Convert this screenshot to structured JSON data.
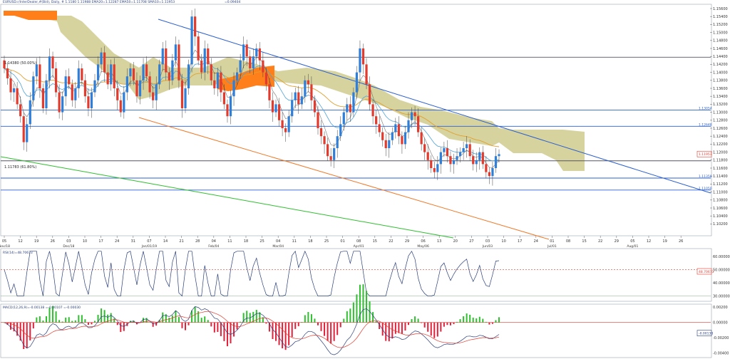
{
  "header": {
    "main_title": "EURUSD.r/InterDealer,#(Bid), Daily, # 1.1180 1.11988 EMA20=1.12287 EMA50=1.11708 SMA10=1.11953",
    "indicator_value": "=0.09404"
  },
  "main_panel": {
    "price_ticks": [
      "1.15600",
      "1.15400",
      "1.15200",
      "1.15000",
      "1.14800",
      "1.14600",
      "1.14400",
      "1.14200",
      "1.14000",
      "1.13800",
      "1.13600",
      "1.13400",
      "1.13200",
      "1.13000",
      "1.12800",
      "1.12600",
      "1.12400",
      "1.12200",
      "1.12000",
      "1.11800",
      "1.11600",
      "1.11400",
      "1.11200",
      "1.11000",
      "1.10800",
      "1.10600",
      "1.10400",
      "1.10200"
    ],
    "fib_50_label": "1.14380 (50.00%)",
    "fib_618_label": "1.11783 (61.80%)",
    "level_labels": [
      "1.13054",
      "1.12648",
      "1.11350",
      "1.11050"
    ],
    "current_price_tag": "1.11953",
    "colors": {
      "up_candle": "#2f7fd8",
      "down_candle": "#e23b2e",
      "cloud": "#c9c47f",
      "cloud_bear": "#ff7f1a",
      "ema_orange": "#e0a030",
      "sma_blue": "#4fa3d8",
      "trend_blue": "#2b5fd0",
      "trend_orange": "#f07a2a",
      "trend_green": "#2fbf2f"
    }
  },
  "x_axis": {
    "tick_labels": [
      "05",
      "12",
      "19",
      "26",
      "03",
      "10",
      "17",
      "24",
      "31",
      "07",
      "14",
      "21",
      "28",
      "04",
      "11",
      "18",
      "25",
      "04",
      "11",
      "18",
      "25",
      "01",
      "08",
      "15",
      "22",
      "29",
      "06",
      "13",
      "20",
      "27",
      "03",
      "10",
      "17",
      "24",
      "01",
      "08",
      "15",
      "22",
      "29",
      "05",
      "12",
      "19",
      "26"
    ],
    "month_labels": [
      {
        "text": "Nov/18",
        "tick": 0
      },
      {
        "text": "Dec/18",
        "tick": 4
      },
      {
        "text": "Jan/01/19",
        "tick": 9
      },
      {
        "text": "Feb/04",
        "tick": 13
      },
      {
        "text": "Mar/04",
        "tick": 17
      },
      {
        "text": "Apr/01",
        "tick": 22
      },
      {
        "text": "May/06",
        "tick": 26
      },
      {
        "text": "Jun/03",
        "tick": 30
      },
      {
        "text": "Jul/01",
        "tick": 34
      },
      {
        "text": "Aug/01",
        "tick": 39
      }
    ]
  },
  "rsi_panel": {
    "title": "RSI(14)=48.70673",
    "ticks": [
      "60.00000",
      "50.00000",
      "40.00000",
      "30.00000"
    ],
    "current_tag": "48.70673"
  },
  "macd_panel": {
    "title": "MACD(12,26,9)=-0.00138 =-0.00107 =-0.00030",
    "ticks": [
      "0.00200",
      "0.00000",
      "-0.00200",
      "-0.00400"
    ],
    "current_tag": "-0.00138"
  },
  "chart_data": [
    {
      "type": "candlestick",
      "title": "EURUSD Daily",
      "ylim": [
        1.1015,
        1.1571
      ],
      "series_approx_close": [
        1.141,
        1.1385,
        1.135,
        1.136,
        1.132,
        1.129,
        1.1225,
        1.127,
        1.133,
        1.139,
        1.142,
        1.136,
        1.131,
        1.138,
        1.144,
        1.141,
        1.135,
        1.13,
        1.134,
        1.139,
        1.137,
        1.133,
        1.136,
        1.141,
        1.138,
        1.134,
        1.131,
        1.135,
        1.138,
        1.142,
        1.145,
        1.14,
        1.137,
        1.142,
        1.136,
        1.133,
        1.13,
        1.135,
        1.139,
        1.141,
        1.138,
        1.134,
        1.138,
        1.142,
        1.139,
        1.135,
        1.133,
        1.137,
        1.142,
        1.146,
        1.14,
        1.138,
        1.143,
        1.147,
        1.138,
        1.131,
        1.136,
        1.142,
        1.154,
        1.149,
        1.143,
        1.14,
        1.146,
        1.142,
        1.138,
        1.136,
        1.14,
        1.135,
        1.132,
        1.129,
        1.134,
        1.138,
        1.14,
        1.143,
        1.147,
        1.144,
        1.141,
        1.144,
        1.146,
        1.143,
        1.14,
        1.137,
        1.133,
        1.13,
        1.132,
        1.128,
        1.126,
        1.125,
        1.129,
        1.133,
        1.135,
        1.132,
        1.134,
        1.138,
        1.137,
        1.133,
        1.13,
        1.126,
        1.124,
        1.122,
        1.119,
        1.118,
        1.121,
        1.124,
        1.127,
        1.13,
        1.132,
        1.13,
        1.135,
        1.14,
        1.146,
        1.142,
        1.137,
        1.132,
        1.129,
        1.127,
        1.125,
        1.123,
        1.121,
        1.123,
        1.125,
        1.127,
        1.124,
        1.122,
        1.125,
        1.128,
        1.13,
        1.129,
        1.125,
        1.122,
        1.12,
        1.118,
        1.116,
        1.115,
        1.117,
        1.12,
        1.121,
        1.119,
        1.117,
        1.118,
        1.119,
        1.12,
        1.121,
        1.122,
        1.119,
        1.117,
        1.118,
        1.12,
        1.117,
        1.115,
        1.114,
        1.116,
        1.119,
        1.1195
      ]
    },
    {
      "type": "line",
      "title": "RSI(14)",
      "ylim": [
        26,
        66
      ],
      "reference_line": 50
    },
    {
      "type": "bar",
      "title": "MACD(12,26,9)",
      "ylim": [
        -0.0046,
        0.0024
      ]
    }
  ]
}
